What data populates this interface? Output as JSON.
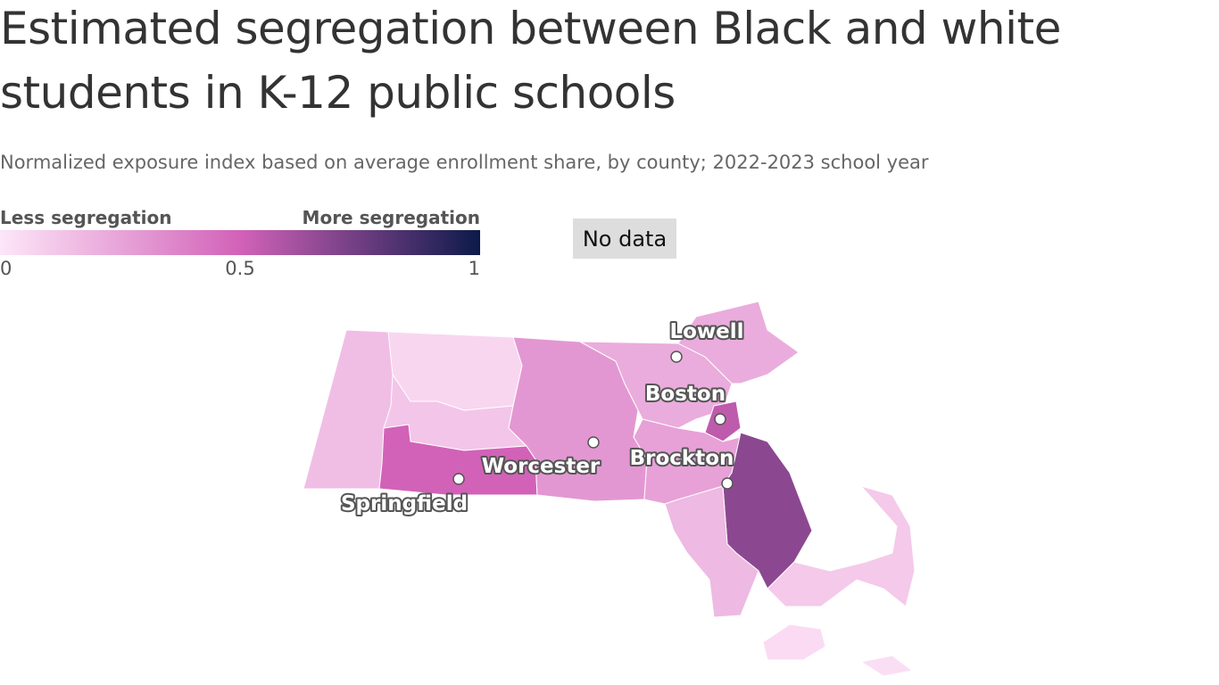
{
  "header": {
    "title": "Estimated segregation between Black and white students in K-12 public schools",
    "subtitle": "Normalized exposure index based on average enrollment share, by county; 2022-2023 school year"
  },
  "legend": {
    "low_label": "Less segregation",
    "high_label": "More segregation",
    "range": [
      0,
      1
    ],
    "ticks": [
      0,
      0.5,
      1
    ],
    "colors": [
      "#fde6f8",
      "#d262b8",
      "#0c1a4a"
    ],
    "no_data": "No data",
    "no_data_color": "#dddddd"
  },
  "map": {
    "regions": [
      {
        "value": 0.15
      },
      {
        "value": 0.06
      },
      {
        "value": 0.12
      },
      {
        "value": 0.5
      },
      {
        "value": 0.3
      },
      {
        "value": 0.22
      },
      {
        "value": 0.22
      },
      {
        "value": 0.55
      },
      {
        "value": 0.26
      },
      {
        "value": 0.68
      },
      {
        "value": 0.17
      },
      {
        "value": 0.11
      },
      {
        "value": 0.04
      },
      {
        "value": 0.03
      }
    ],
    "cities": [
      {
        "label": "Lowell"
      },
      {
        "label": "Boston"
      },
      {
        "label": "Worcester"
      },
      {
        "label": "Brockton"
      },
      {
        "label": "Springfield"
      }
    ]
  }
}
